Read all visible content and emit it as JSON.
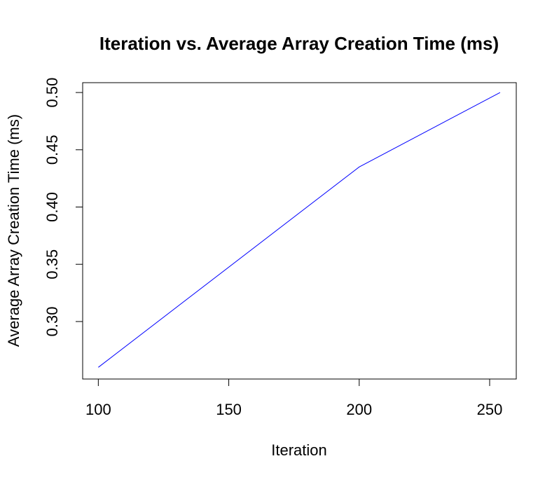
{
  "chart_data": {
    "type": "line",
    "title": "Iteration vs. Average Array Creation Time (ms)",
    "xlabel": "Iteration",
    "ylabel": "Average Array Creation Time (ms)",
    "x_ticks": [
      100,
      150,
      200,
      250
    ],
    "y_ticks": [
      0.3,
      0.35,
      0.4,
      0.45,
      0.5
    ],
    "x_tick_labels": [
      "100",
      "150",
      "200",
      "250"
    ],
    "y_tick_labels": [
      "0.30",
      "0.35",
      "0.40",
      "0.45",
      "0.50"
    ],
    "xlim": [
      94,
      260.2
    ],
    "ylim": [
      0.2498,
      0.5086
    ],
    "grid": false,
    "series": [
      {
        "color": "#0000ff",
        "x": [
          100,
          200,
          254
        ],
        "y": [
          0.26,
          0.435,
          0.5
        ]
      }
    ]
  }
}
